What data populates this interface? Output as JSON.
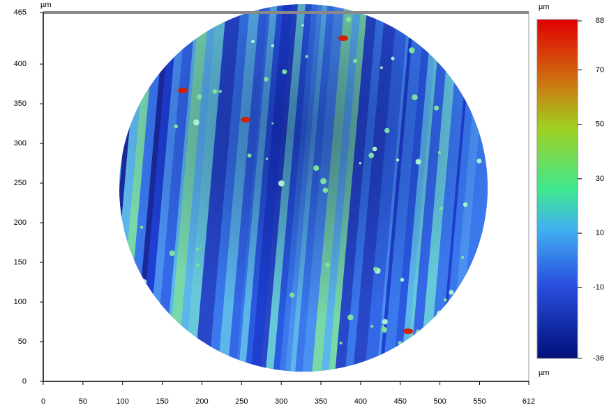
{
  "chart_data": {
    "type": "heatmap",
    "ylabel": "µm",
    "xlim": [
      0,
      612
    ],
    "ylim": [
      0,
      465
    ],
    "xticks": [
      0,
      50,
      100,
      150,
      200,
      250,
      300,
      350,
      400,
      450,
      500,
      550,
      612
    ],
    "yticks": [
      0,
      50,
      100,
      150,
      200,
      250,
      300,
      350,
      400,
      465
    ],
    "colorbar": {
      "label_top": "µm",
      "label_bottom": "µm",
      "lim": [
        -36,
        88
      ],
      "ticks": [
        88,
        70,
        50,
        30,
        10,
        -10,
        -36
      ]
    }
  }
}
